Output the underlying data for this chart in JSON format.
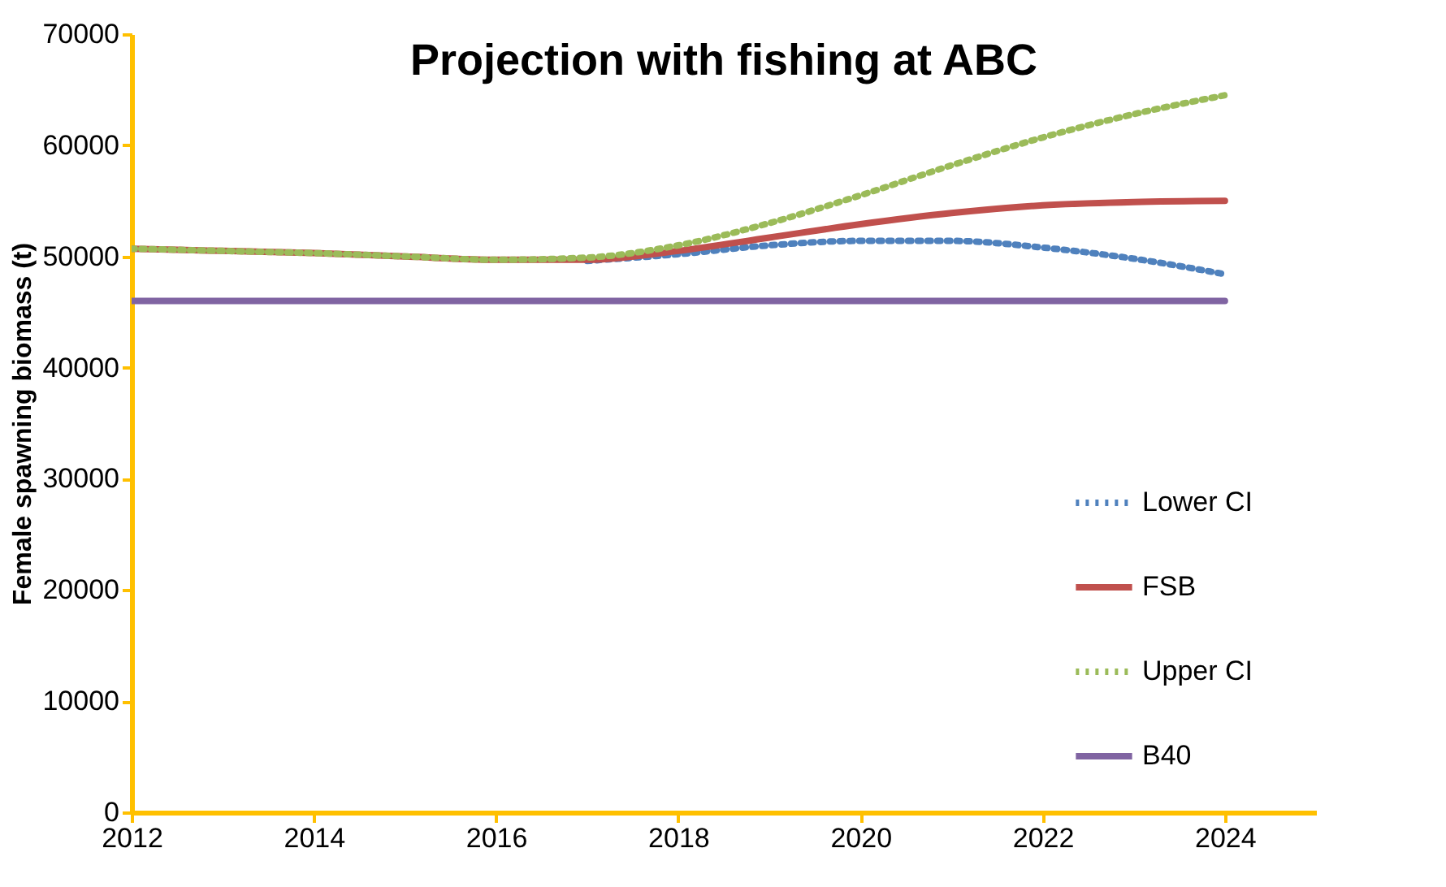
{
  "chart_data": {
    "type": "line",
    "title": "Projection with fishing at ABC",
    "ylabel": "Female spawning biomass (t)",
    "x": [
      2012,
      2013,
      2014,
      2015,
      2016,
      2017,
      2018,
      2019,
      2020,
      2021,
      2022,
      2023,
      2024
    ],
    "series": [
      {
        "name": "Lower CI",
        "color": "#4f81bd",
        "line_style": "dotted",
        "values": [
          null,
          null,
          null,
          null,
          null,
          49600,
          50200,
          51000,
          51400,
          51400,
          50800,
          49800,
          48400
        ]
      },
      {
        "name": "FSB",
        "color": "#c0504d",
        "line_style": "solid",
        "values": [
          50700,
          50500,
          50300,
          50000,
          49700,
          49700,
          50500,
          51700,
          52900,
          53900,
          54600,
          54900,
          55000
        ]
      },
      {
        "name": "Upper CI",
        "color": "#9bbb59",
        "line_style": "dotted",
        "values": [
          50700,
          50500,
          50300,
          50000,
          49700,
          49900,
          51000,
          53000,
          55500,
          58200,
          60700,
          62800,
          64500
        ]
      },
      {
        "name": "B40",
        "color": "#8064a2",
        "line_style": "solid",
        "values": [
          46000,
          46000,
          46000,
          46000,
          46000,
          46000,
          46000,
          46000,
          46000,
          46000,
          46000,
          46000,
          46000
        ]
      }
    ],
    "xlim": [
      2012,
      2025
    ],
    "xticks": [
      2012,
      2014,
      2016,
      2018,
      2020,
      2022,
      2024
    ],
    "ylim": [
      0,
      70000
    ],
    "yticks": [
      0,
      10000,
      20000,
      30000,
      40000,
      50000,
      60000,
      70000
    ],
    "grid": false,
    "legend": "bottom right",
    "marker": "none"
  }
}
